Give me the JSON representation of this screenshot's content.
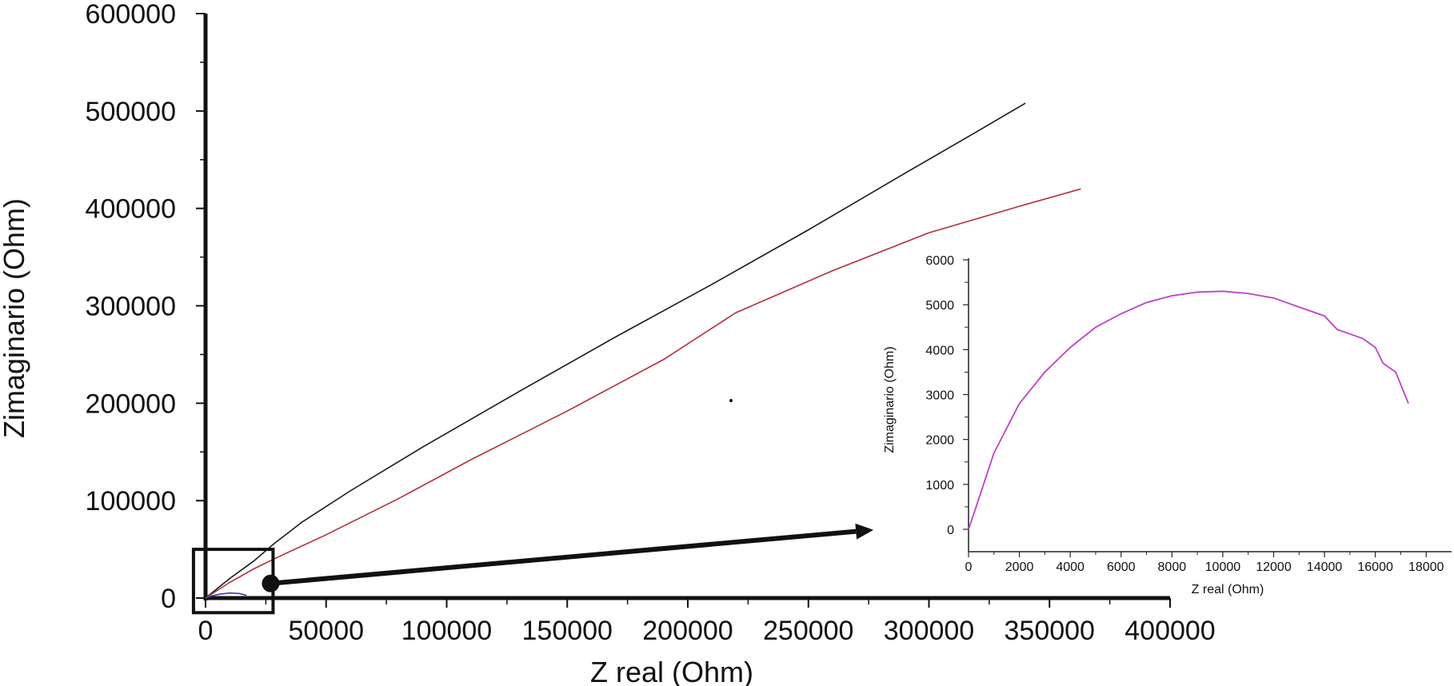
{
  "chart_data": [
    {
      "type": "line",
      "xlabel": "Z real (Ohm)",
      "ylabel": "Zimaginario (Ohm)",
      "xlim": [
        0,
        400000
      ],
      "ylim": [
        0,
        600000
      ],
      "xticks": [
        0,
        50000,
        100000,
        150000,
        200000,
        250000,
        300000,
        350000,
        400000
      ],
      "yticks": [
        0,
        100000,
        200000,
        300000,
        400000,
        500000,
        600000
      ],
      "x_tick_labels": [
        "0",
        "50000",
        "100000",
        "150000",
        "200000",
        "250000",
        "300000",
        "350000",
        "400000"
      ],
      "y_tick_labels": [
        "0",
        "100000",
        "200000",
        "300000",
        "400000",
        "500000",
        "600000"
      ],
      "grid": false,
      "series": [
        {
          "color": "#1a1a1a",
          "points": [
            [
              0,
              0
            ],
            [
              10000,
              20000
            ],
            [
              20000,
              38000
            ],
            [
              28000,
              55000
            ],
            [
              40000,
              78000
            ],
            [
              60000,
              110000
            ],
            [
              90000,
              155000
            ],
            [
              130000,
              212000
            ],
            [
              170000,
              268000
            ],
            [
              210000,
              322000
            ],
            [
              250000,
              378000
            ],
            [
              290000,
              436000
            ],
            [
              320000,
              479000
            ],
            [
              340000,
              508000
            ]
          ]
        },
        {
          "color": "#b22f3a",
          "points": [
            [
              0,
              0
            ],
            [
              10000,
              16000
            ],
            [
              20000,
              30000
            ],
            [
              30000,
              42000
            ],
            [
              50000,
              65000
            ],
            [
              80000,
              102000
            ],
            [
              110000,
              142000
            ],
            [
              150000,
              192000
            ],
            [
              190000,
              245000
            ],
            [
              220000,
              293000
            ],
            [
              260000,
              336000
            ],
            [
              300000,
              375000
            ],
            [
              340000,
              404000
            ],
            [
              363000,
              420000
            ]
          ]
        },
        {
          "color": "#3a3f9e",
          "points": [
            [
              0,
              0
            ],
            [
              3000,
              2500
            ],
            [
              6000,
              4000
            ],
            [
              10000,
              5200
            ],
            [
              14000,
              4700
            ],
            [
              17000,
              2800
            ]
          ]
        }
      ],
      "markers": [
        {
          "kind": "zoom-box",
          "x_range": [
            -5000,
            28000
          ],
          "y_range": [
            -15000,
            50000
          ],
          "color": "#111111"
        },
        {
          "kind": "point",
          "x": 27000,
          "y": 15000,
          "color": "#111111"
        }
      ],
      "annotations": [
        {
          "kind": "arrow",
          "from": [
            27000,
            15000
          ],
          "to": [
            277000,
            70000
          ],
          "color": "#111111"
        }
      ]
    },
    {
      "type": "line",
      "xlabel": "Z real (Ohm)",
      "ylabel": "Zimaginario (Ohm)",
      "xlim": [
        0,
        19000
      ],
      "ylim": [
        0,
        6000
      ],
      "xticks": [
        0,
        2000,
        4000,
        6000,
        8000,
        10000,
        12000,
        14000,
        16000,
        18000
      ],
      "yticks": [
        0,
        1000,
        2000,
        3000,
        4000,
        5000,
        6000
      ],
      "x_tick_labels": [
        "0",
        "2000",
        "4000",
        "6000",
        "8000",
        "10000",
        "12000",
        "14000",
        "16000",
        "18000"
      ],
      "y_tick_labels": [
        "0",
        "1000",
        "2000",
        "3000",
        "4000",
        "5000",
        "6000"
      ],
      "grid": false,
      "series": [
        {
          "color": "#c23ec6",
          "points": [
            [
              0,
              0
            ],
            [
              300,
              500
            ],
            [
              1000,
              1700
            ],
            [
              2000,
              2800
            ],
            [
              3000,
              3500
            ],
            [
              4000,
              4050
            ],
            [
              5000,
              4500
            ],
            [
              6000,
              4800
            ],
            [
              7000,
              5050
            ],
            [
              8000,
              5200
            ],
            [
              9000,
              5280
            ],
            [
              10000,
              5300
            ],
            [
              11000,
              5250
            ],
            [
              12000,
              5150
            ],
            [
              13000,
              4950
            ],
            [
              14000,
              4750
            ],
            [
              14500,
              4450
            ],
            [
              15000,
              4350
            ],
            [
              15500,
              4250
            ],
            [
              16000,
              4050
            ],
            [
              16300,
              3700
            ],
            [
              16800,
              3500
            ],
            [
              17300,
              2800
            ]
          ]
        }
      ]
    }
  ]
}
